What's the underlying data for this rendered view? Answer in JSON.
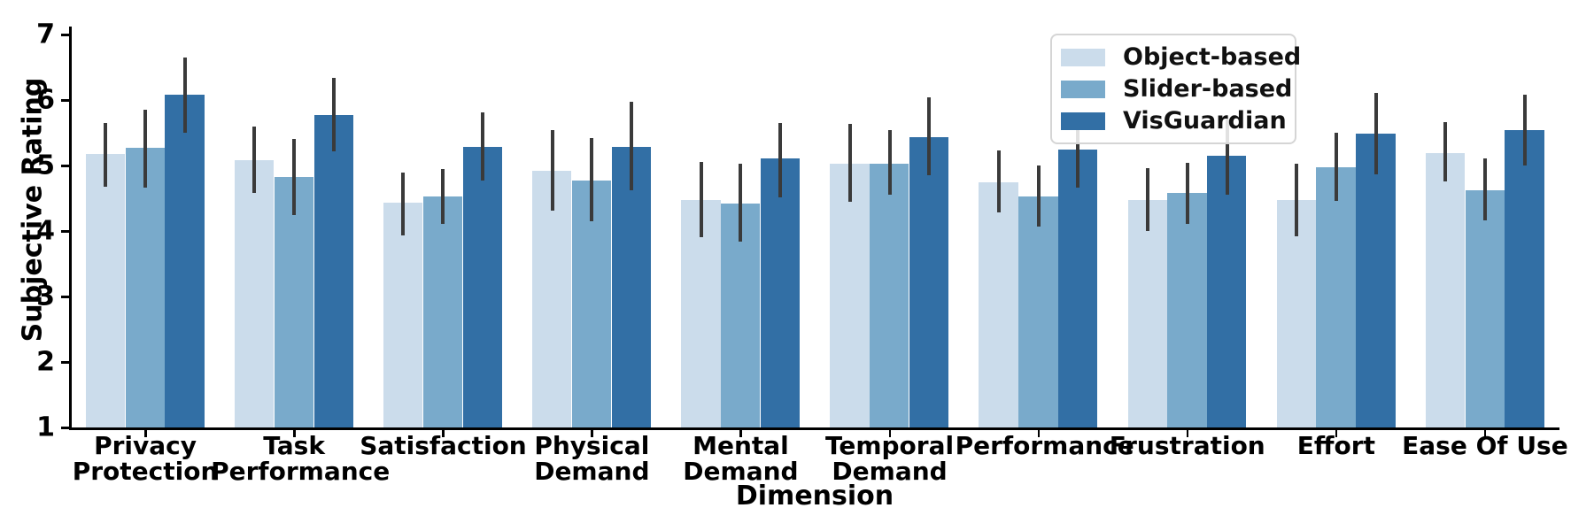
{
  "chart_data": {
    "type": "bar",
    "title": "",
    "xlabel": "Dimension",
    "ylabel": "Subjective Rating",
    "ylim": [
      1,
      7
    ],
    "yticks": [
      1,
      2,
      3,
      4,
      5,
      6,
      7
    ],
    "grid": false,
    "legend_position": "upper right",
    "error_bar_color": "#3A3A3A",
    "categories": [
      "Privacy\nProtection",
      "Task\nPerformance",
      "Satisfaction",
      "Physical\nDemand",
      "Mental\nDemand",
      "Temporal\nDemand",
      "Performance",
      "Frustration",
      "Effort",
      "Ease Of Use"
    ],
    "series": [
      {
        "name": "Object-based",
        "color": "#CBDCEB",
        "values": [
          5.17,
          5.08,
          4.43,
          4.92,
          4.47,
          5.03,
          4.74,
          4.47,
          4.47,
          5.19
        ],
        "err_low": [
          4.68,
          4.58,
          3.93,
          4.31,
          3.91,
          4.45,
          4.28,
          4.0,
          3.92,
          4.76
        ],
        "err_high": [
          5.65,
          5.59,
          4.89,
          5.54,
          5.05,
          5.64,
          5.23,
          4.96,
          5.03,
          5.66
        ]
      },
      {
        "name": "Slider-based",
        "color": "#79AACB",
        "values": [
          5.27,
          4.82,
          4.53,
          4.77,
          4.42,
          5.03,
          4.53,
          4.58,
          4.97,
          4.62
        ],
        "err_low": [
          4.66,
          4.24,
          4.11,
          4.15,
          3.84,
          4.55,
          4.07,
          4.11,
          4.46,
          4.16
        ],
        "err_high": [
          5.85,
          5.41,
          4.95,
          5.42,
          5.03,
          5.54,
          5.0,
          5.04,
          5.5,
          5.11
        ]
      },
      {
        "name": "VisGuardian",
        "color": "#326FA5",
        "values": [
          6.08,
          5.77,
          5.28,
          5.28,
          5.11,
          5.43,
          5.24,
          5.15,
          5.49,
          5.54
        ],
        "err_low": [
          5.5,
          5.22,
          4.77,
          4.62,
          4.51,
          4.85,
          4.66,
          4.55,
          4.86,
          5.0
        ],
        "err_high": [
          6.65,
          6.34,
          5.81,
          5.97,
          5.65,
          6.04,
          5.62,
          5.7,
          6.11,
          6.08
        ]
      }
    ]
  }
}
